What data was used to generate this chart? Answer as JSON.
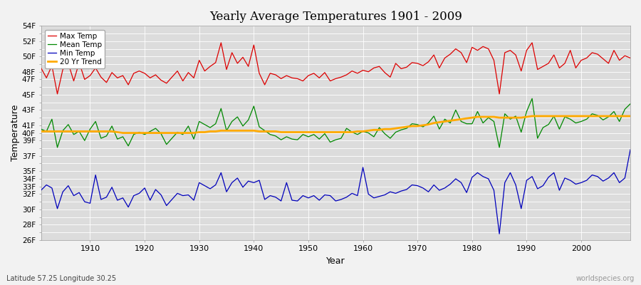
{
  "title": "Yearly Average Temperatures 1901 - 2009",
  "xlabel": "Year",
  "ylabel": "Temperature",
  "subtitle_lat": "Latitude 57.25 Longitude 30.25",
  "watermark": "worldspecies.org",
  "ylim_min": 26,
  "ylim_max": 54,
  "bg_color": "#e0e0e0",
  "plot_bg_color": "#dcdcdc",
  "grid_color": "#ffffff",
  "line_max_color": "#dd0000",
  "line_mean_color": "#008800",
  "line_min_color": "#0000bb",
  "line_trend_color": "#ffaa00",
  "legend_labels": [
    "Max Temp",
    "Mean Temp",
    "Min Temp",
    "20 Yr Trend"
  ],
  "shown_yticks": [
    26,
    28,
    30,
    32,
    33,
    34,
    35,
    37,
    39,
    40,
    41,
    43,
    45,
    47,
    48,
    50,
    52,
    54
  ],
  "years": [
    1901,
    1902,
    1903,
    1904,
    1905,
    1906,
    1907,
    1908,
    1909,
    1910,
    1911,
    1912,
    1913,
    1914,
    1915,
    1916,
    1917,
    1918,
    1919,
    1920,
    1921,
    1922,
    1923,
    1924,
    1925,
    1926,
    1927,
    1928,
    1929,
    1930,
    1931,
    1932,
    1933,
    1934,
    1935,
    1936,
    1937,
    1938,
    1939,
    1940,
    1941,
    1942,
    1943,
    1944,
    1945,
    1946,
    1947,
    1948,
    1949,
    1950,
    1951,
    1952,
    1953,
    1954,
    1955,
    1956,
    1957,
    1958,
    1959,
    1960,
    1961,
    1962,
    1963,
    1964,
    1965,
    1966,
    1967,
    1968,
    1969,
    1970,
    1971,
    1972,
    1973,
    1974,
    1975,
    1976,
    1977,
    1978,
    1979,
    1980,
    1981,
    1982,
    1983,
    1984,
    1985,
    1986,
    1987,
    1988,
    1989,
    1990,
    1991,
    1992,
    1993,
    1994,
    1995,
    1996,
    1997,
    1998,
    1999,
    2000,
    2001,
    2002,
    2003,
    2004,
    2005,
    2006,
    2007,
    2008,
    2009
  ],
  "max_temps": [
    48.5,
    47.2,
    48.8,
    45.1,
    48.3,
    49.1,
    46.8,
    49.2,
    47.0,
    47.5,
    48.5,
    47.3,
    46.6,
    47.9,
    47.2,
    47.5,
    46.3,
    47.8,
    48.1,
    47.8,
    47.2,
    47.6,
    46.9,
    46.5,
    47.3,
    48.1,
    46.8,
    47.9,
    47.2,
    49.5,
    48.1,
    48.7,
    49.2,
    51.8,
    48.3,
    50.5,
    49.1,
    49.9,
    48.7,
    51.5,
    47.8,
    46.3,
    47.8,
    47.6,
    47.1,
    47.5,
    47.2,
    47.1,
    46.8,
    47.5,
    47.8,
    47.2,
    47.9,
    46.8,
    47.1,
    47.3,
    47.6,
    48.1,
    47.8,
    48.2,
    48.0,
    48.5,
    48.7,
    47.9,
    47.3,
    49.1,
    48.4,
    48.6,
    49.2,
    49.1,
    48.8,
    49.3,
    50.2,
    48.5,
    49.8,
    50.3,
    51.0,
    50.5,
    49.2,
    51.2,
    50.8,
    51.3,
    51.0,
    49.5,
    45.1,
    50.5,
    50.8,
    50.2,
    48.1,
    50.8,
    51.8,
    48.3,
    48.7,
    49.1,
    50.2,
    48.5,
    49.1,
    50.8,
    48.5,
    49.5,
    49.8,
    50.5,
    50.3,
    49.7,
    49.1,
    50.8,
    49.5,
    50.1,
    49.8
  ],
  "mean_temps": [
    40.5,
    40.2,
    41.8,
    38.1,
    40.3,
    41.1,
    39.8,
    40.2,
    39.0,
    40.5,
    41.5,
    39.3,
    39.6,
    40.9,
    39.2,
    39.5,
    38.3,
    39.8,
    40.1,
    39.8,
    40.2,
    40.6,
    39.9,
    38.5,
    39.3,
    40.1,
    39.8,
    40.9,
    39.2,
    41.5,
    41.1,
    40.7,
    41.2,
    43.2,
    40.3,
    41.5,
    42.1,
    40.9,
    41.7,
    43.5,
    40.8,
    40.3,
    39.8,
    39.6,
    39.1,
    39.5,
    39.2,
    39.1,
    39.8,
    39.5,
    39.8,
    39.2,
    39.9,
    38.8,
    39.1,
    39.3,
    40.6,
    40.1,
    39.8,
    40.2,
    40.0,
    39.5,
    40.7,
    39.9,
    39.3,
    40.1,
    40.4,
    40.6,
    41.2,
    41.1,
    40.8,
    41.3,
    42.2,
    40.5,
    41.8,
    41.3,
    43.0,
    41.5,
    41.2,
    41.2,
    42.8,
    41.3,
    42.0,
    41.5,
    38.1,
    42.5,
    41.8,
    42.2,
    40.1,
    42.8,
    44.5,
    39.3,
    40.7,
    41.1,
    42.2,
    40.5,
    42.1,
    41.8,
    41.3,
    41.5,
    41.8,
    42.5,
    42.3,
    41.7,
    42.1,
    42.8,
    41.5,
    43.1,
    43.8
  ],
  "min_temps": [
    32.5,
    33.2,
    32.8,
    30.1,
    32.3,
    33.1,
    31.8,
    32.2,
    31.0,
    30.8,
    34.5,
    31.3,
    31.6,
    32.9,
    31.2,
    31.5,
    30.3,
    31.8,
    32.1,
    32.8,
    31.2,
    32.6,
    31.9,
    30.5,
    31.3,
    32.1,
    31.8,
    31.9,
    31.2,
    33.5,
    33.1,
    32.7,
    33.2,
    34.8,
    32.3,
    33.5,
    34.1,
    32.9,
    33.7,
    33.5,
    33.8,
    31.3,
    31.8,
    31.6,
    31.1,
    33.5,
    31.2,
    31.1,
    31.8,
    31.5,
    31.8,
    31.2,
    31.9,
    31.8,
    31.1,
    31.3,
    31.6,
    32.1,
    31.8,
    35.5,
    32.0,
    31.5,
    31.7,
    31.9,
    32.3,
    32.1,
    32.4,
    32.6,
    33.2,
    33.1,
    32.8,
    32.3,
    33.2,
    32.5,
    32.8,
    33.3,
    34.0,
    33.5,
    32.2,
    34.2,
    34.8,
    34.3,
    34.0,
    32.5,
    26.8,
    33.5,
    34.8,
    33.2,
    30.1,
    33.8,
    34.3,
    32.7,
    33.1,
    34.2,
    34.8,
    32.5,
    34.1,
    33.8,
    33.3,
    33.5,
    33.8,
    34.5,
    34.3,
    33.7,
    34.1,
    34.8,
    33.5,
    34.1,
    37.8
  ],
  "trend_temps": [
    40.2,
    40.2,
    40.2,
    40.2,
    40.2,
    40.2,
    40.2,
    40.2,
    40.2,
    40.2,
    40.2,
    40.2,
    40.2,
    40.2,
    40.1,
    40.0,
    40.0,
    40.0,
    40.0,
    40.0,
    40.0,
    40.0,
    40.0,
    40.0,
    40.0,
    40.0,
    40.0,
    40.0,
    40.0,
    40.1,
    40.1,
    40.2,
    40.2,
    40.3,
    40.3,
    40.3,
    40.3,
    40.3,
    40.3,
    40.3,
    40.2,
    40.2,
    40.2,
    40.2,
    40.1,
    40.1,
    40.1,
    40.1,
    40.1,
    40.1,
    40.1,
    40.1,
    40.1,
    40.1,
    40.1,
    40.1,
    40.1,
    40.1,
    40.2,
    40.2,
    40.3,
    40.4,
    40.4,
    40.5,
    40.5,
    40.6,
    40.7,
    40.8,
    40.9,
    40.9,
    41.0,
    41.1,
    41.3,
    41.4,
    41.5,
    41.6,
    41.7,
    41.8,
    41.9,
    42.0,
    42.1,
    42.1,
    42.1,
    42.1,
    42.0,
    42.0,
    42.0,
    42.0,
    42.0,
    42.1,
    42.2,
    42.2,
    42.2,
    42.2,
    42.2,
    42.2,
    42.2,
    42.2,
    42.2,
    42.2,
    42.2,
    42.2,
    42.2,
    42.2,
    42.2,
    42.2,
    42.2,
    42.2,
    42.2
  ]
}
